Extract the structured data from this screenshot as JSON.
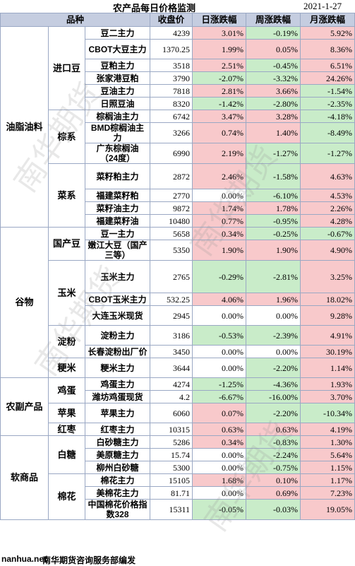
{
  "header": {
    "title": "农产品每日价格监测",
    "date": "2021-1-27"
  },
  "columns": [
    "品种",
    "收盘价",
    "日涨跌幅",
    "周涨跌幅",
    "月涨跌幅"
  ],
  "sections": [
    {
      "label": "油脂油料",
      "groups": [
        {
          "label": "进口豆",
          "rows": [
            {
              "name": "豆二主力",
              "price": "4239",
              "day": "3.01%",
              "week": "-0.19%",
              "month": "5.92%"
            },
            {
              "name": "CBOT大豆主力",
              "price": "1370.25",
              "day": "1.99%",
              "week": "0.05%",
              "month": "8.36%"
            },
            {
              "name": "豆粕主力",
              "price": "3518",
              "day": "2.51%",
              "week": "-0.45%",
              "month": "6.51%"
            },
            {
              "name": "张家港豆粕",
              "price": "3790",
              "day": "-2.07%",
              "week": "-3.32%",
              "month": "24.26%"
            },
            {
              "name": "豆油主力",
              "price": "7818",
              "day": "2.81%",
              "week": "3.66%",
              "month": "-1.54%"
            },
            {
              "name": "日照豆油",
              "price": "8320",
              "day": "-1.42%",
              "week": "-2.80%",
              "month": "-2.35%"
            }
          ]
        },
        {
          "label": "棕系",
          "rows": [
            {
              "name": "棕榈油主力",
              "price": "6742",
              "day": "3.47%",
              "week": "3.28%",
              "month": "-4.18%"
            },
            {
              "name": "BMD棕榈油主力",
              "price": "3266",
              "day": "0.74%",
              "week": "1.40%",
              "month": "-8.49%"
            },
            {
              "name": "广东棕榈油（24度）",
              "price": "6990",
              "day": "2.19%",
              "week": "-1.27%",
              "month": "-1.27%"
            }
          ]
        },
        {
          "label": "菜系",
          "rows": [
            {
              "name": "菜籽粕主力",
              "price": "2872",
              "day": "2.46%",
              "week": "-1.58%",
              "month": "4.63%"
            },
            {
              "name": "福建菜籽粕",
              "price": "2770",
              "day": "0.00%",
              "week": "-6.10%",
              "month": "4.53%"
            },
            {
              "name": "菜籽油主力",
              "price": "9872",
              "day": "1.74%",
              "week": "1.78%",
              "month": "2.26%"
            },
            {
              "name": "福建菜籽油",
              "price": "10480",
              "day": "0.77%",
              "week": "-0.95%",
              "month": "4.28%"
            }
          ]
        }
      ]
    },
    {
      "label": "谷物",
      "groups": [
        {
          "label": "国产豆",
          "rows": [
            {
              "name": "豆一主力",
              "price": "5658",
              "day": "0.34%",
              "week": "-0.25%",
              "month": "-0.67%"
            },
            {
              "name": "嫩江大豆（国产三等）",
              "price": "5350",
              "day": "1.90%",
              "week": "1.90%",
              "month": "4.90%"
            }
          ]
        },
        {
          "label": "玉米",
          "rows": [
            {
              "name": "玉米主力",
              "price": "2765",
              "day": "-0.29%",
              "week": "-2.81%",
              "month": "3.25%"
            },
            {
              "name": "CBOT玉米主力",
              "price": "532.25",
              "day": "4.06%",
              "week": "1.96%",
              "month": "18.02%"
            },
            {
              "name": "大连玉米现货",
              "price": "2945",
              "day": "0.00%",
              "week": "0.00%",
              "month": "9.28%"
            }
          ]
        },
        {
          "label": "淀粉",
          "rows": [
            {
              "name": "淀粉主力",
              "price": "3186",
              "day": "-0.53%",
              "week": "-2.39%",
              "month": "4.91%"
            },
            {
              "name": "长春淀粉出厂价",
              "price": "3450",
              "day": "0.00%",
              "week": "0.00%",
              "month": "30.19%"
            }
          ]
        },
        {
          "label": "粳米",
          "rows": [
            {
              "name": "粳米主力",
              "price": "3644",
              "day": "0.00%",
              "week": "-2.20%",
              "month": "1.14%"
            }
          ]
        }
      ]
    },
    {
      "label": "农副产品",
      "groups": [
        {
          "label": "鸡蛋",
          "rows": [
            {
              "name": "鸡蛋主力",
              "price": "4274",
              "day": "-1.25%",
              "week": "-4.36%",
              "month": "1.93%"
            },
            {
              "name": "潍坊鸡蛋现货",
              "price": "4.2",
              "day": "-6.67%",
              "week": "-16.00%",
              "month": "3.70%"
            }
          ]
        },
        {
          "label": "苹果",
          "rows": [
            {
              "name": "苹果主力",
              "price": "6060",
              "day": "0.07%",
              "week": "-2.20%",
              "month": "-10.34%"
            }
          ]
        },
        {
          "label": "红枣",
          "rows": [
            {
              "name": "红枣主力",
              "price": "10315",
              "day": "0.63%",
              "week": "0.63%",
              "month": "4.19%"
            }
          ]
        }
      ]
    },
    {
      "label": "软商品",
      "groups": [
        {
          "label": "白糖",
          "rows": [
            {
              "name": "白砂糖主力",
              "price": "5286",
              "day": "0.34%",
              "week": "-0.83%",
              "month": "1.30%"
            },
            {
              "name": "美原糖主力",
              "price": "15.74",
              "day": "0.00%",
              "week": "-2.24%",
              "month": "5.64%"
            },
            {
              "name": "柳州白砂糖",
              "price": "5300",
              "day": "0.00%",
              "week": "-0.75%",
              "month": "1.15%"
            }
          ]
        },
        {
          "label": "棉花",
          "rows": [
            {
              "name": "棉花主力",
              "price": "15105",
              "day": "1.68%",
              "week": "0.10%",
              "month": "1.17%"
            },
            {
              "name": "美棉花主力",
              "price": "81.71",
              "day": "0.00%",
              "week": "0.69%",
              "month": "7.23%"
            },
            {
              "name": "中国棉花价格指数328",
              "price": "15311",
              "day": "-0.05%",
              "week": "-0.03%",
              "month": "19.05%"
            }
          ]
        }
      ]
    }
  ],
  "footer": {
    "site": "nanhua.net",
    "note": "南华期货咨询服务部编发"
  },
  "watermark": "南华期货",
  "colors": {
    "up": "#f8c9cb",
    "down": "#c9ecc9",
    "header": "#c5cde0",
    "border": "#9aa8c4"
  }
}
